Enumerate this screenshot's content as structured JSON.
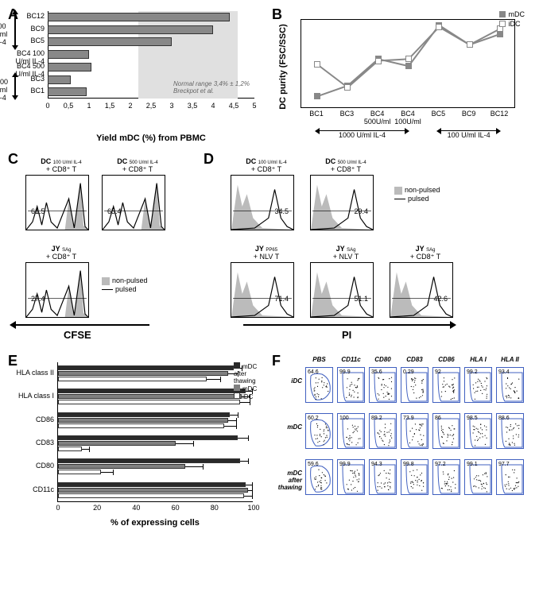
{
  "colors": {
    "bar_gray": "#888888",
    "bar_dark": "#2a2a2a",
    "bar_mid": "#808080",
    "bar_white": "#ffffff",
    "shade": "#e0e0e0",
    "facs_fill": "#bbbbbb",
    "facs_border": "#4060c0"
  },
  "A": {
    "xlabel": "Yield mDC (%) from PBMC",
    "x_ticks": [
      "0",
      "0,5",
      "1",
      "1,5",
      "2",
      "2,5",
      "3",
      "3,5",
      "4",
      "4,5",
      "5"
    ],
    "xmax": 5,
    "shade_from": 2.2,
    "shade_to": 4.6,
    "note_line1": "Normal range 3,4% ± 1,2%",
    "note_line2": "Breckpot et al.",
    "groups": [
      {
        "label": "100 U/ml\nIL-4",
        "from": 0,
        "to": 3
      },
      {
        "label": "1000 U/ml\nIL-4",
        "from": 5,
        "to": 7
      }
    ],
    "rows": [
      {
        "label": "BC12",
        "value": 4.4
      },
      {
        "label": "BC9",
        "value": 4.0
      },
      {
        "label": "BC5",
        "value": 3.0
      },
      {
        "label": "BC4 100 U/ml IL-4",
        "value": 1.0
      },
      {
        "label": "BC4 500 U/ml IL-4",
        "value": 1.05
      },
      {
        "label": "BC3",
        "value": 0.55
      },
      {
        "label": "BC1",
        "value": 0.95
      }
    ]
  },
  "B": {
    "ylabel": "DC purity (FSC/SSC)",
    "legend_m": "mDC",
    "legend_i": "iDC",
    "ymin": 30,
    "ymax": 80,
    "x_labels": [
      "BC1",
      "BC3",
      "BC4\n500U/ml",
      "BC4\n100U/ml",
      "BC5",
      "BC9",
      "BC12"
    ],
    "group1": "1000 U/ml IL-4",
    "group1_span": [
      0,
      3
    ],
    "group2": "100 U/ml IL-4",
    "group2_span": [
      4,
      6
    ],
    "series_m": [
      37,
      43,
      58,
      54,
      77,
      66,
      72
    ],
    "series_i": [
      55,
      42,
      57,
      58,
      76,
      66,
      75
    ]
  },
  "C": {
    "axis": "CFSE",
    "legend_np": "non-pulsed",
    "legend_p": "pulsed",
    "plots": [
      {
        "title_l1": "DC",
        "title_sub": "100 U/ml IL-4",
        "title_l2": "+ CD8⁺ T",
        "value": "61.5"
      },
      {
        "title_l1": "DC",
        "title_sub": "500 U/ml IL-4",
        "title_l2": "+ CD8⁺ T",
        "value": "65.4"
      },
      {
        "title_l1": "JY",
        "title_sub": "SAg",
        "title_l2": "+ CD8⁺ T",
        "value": "27.4"
      }
    ]
  },
  "D": {
    "axis": "PI",
    "legend_np": "non-pulsed",
    "legend_p": "pulsed",
    "plots": [
      {
        "title_l1": "DC",
        "title_sub": "100 U/ml IL-4",
        "title_l2": "+ CD8⁺ T",
        "value": "34.5"
      },
      {
        "title_l1": "DC",
        "title_sub": "500 U/ml IL-4",
        "title_l2": "+ CD8⁺ T",
        "value": "29.4"
      },
      {
        "title_l1": "JY",
        "title_sub": "PP65",
        "title_l2": "+ NLV T",
        "value": "71.4"
      },
      {
        "title_l1": "JY",
        "title_sub": "SAg",
        "title_l2": "+ NLV T",
        "value": "51.1"
      },
      {
        "title_l1": "JY",
        "title_sub": "SAg",
        "title_l2": "+ CD8⁺ T",
        "value": "42.6"
      }
    ]
  },
  "E": {
    "xlabel": "% of expressing cells",
    "xmax": 100,
    "x_ticks": [
      "0",
      "20",
      "40",
      "60",
      "80",
      "100"
    ],
    "legend": [
      "mDC after thawing",
      "mDC",
      "iDC"
    ],
    "rows": [
      {
        "label": "HLA class II",
        "mthaw": 90,
        "mthaw_e": 4,
        "m": 87,
        "m_e": 5,
        "i": 76,
        "i_e": 7
      },
      {
        "label": "HLA class I",
        "mthaw": 96,
        "mthaw_e": 3,
        "m": 94,
        "m_e": 4,
        "i": 93,
        "i_e": 5
      },
      {
        "label": "CD86",
        "mthaw": 88,
        "mthaw_e": 4,
        "m": 87,
        "m_e": 4,
        "i": 85,
        "i_e": 6
      },
      {
        "label": "CD83",
        "mthaw": 92,
        "mthaw_e": 5,
        "m": 60,
        "m_e": 9,
        "i": 12,
        "i_e": 4
      },
      {
        "label": "CD80",
        "mthaw": 93,
        "mthaw_e": 4,
        "m": 65,
        "m_e": 9,
        "i": 22,
        "i_e": 6
      },
      {
        "label": "CD11c",
        "mthaw": 96,
        "mthaw_e": 3,
        "m": 97,
        "m_e": 2,
        "i": 95,
        "i_e": 4
      }
    ]
  },
  "F": {
    "cols": [
      "PBS",
      "CD11c",
      "CD80",
      "CD83",
      "CD86",
      "HLA I",
      "HLA II"
    ],
    "rows": [
      "iDC",
      "mDC",
      "mDC\nafter\nthawing"
    ],
    "values": [
      [
        "64.6",
        "99.9",
        "35.6",
        "0.29",
        "92",
        "99.2",
        "93.4"
      ],
      [
        "60.2",
        "100",
        "89.2",
        "73.9",
        "86",
        "98.5",
        "88.6"
      ],
      [
        "59.6",
        "99.9",
        "94.3",
        "99.8",
        "97.2",
        "99.1",
        "97.7"
      ]
    ]
  }
}
